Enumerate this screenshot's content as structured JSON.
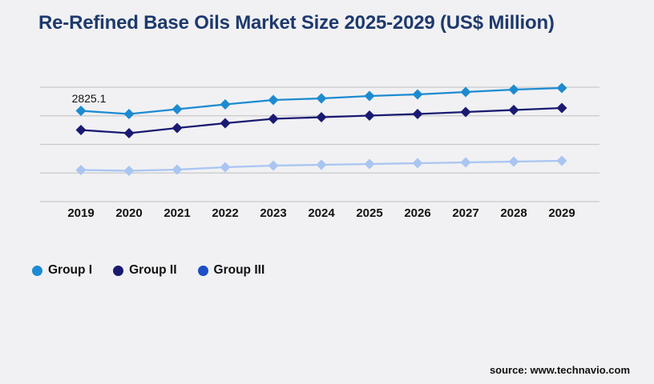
{
  "title": "Re-Refined Base Oils Market Size 2025-2029 (US$ Million)",
  "source": "source: www.technavio.com",
  "colors": {
    "background": "#f1f1f3",
    "title_text": "#1e3a6d",
    "gridline": "#c9c9cd",
    "axis_text": "#121212",
    "group1": "#1d8bd1",
    "group2": "#1a1a72",
    "group3_line": "#a9c5f2",
    "group3_legend": "#1d4ec5"
  },
  "chart_data": {
    "type": "line",
    "title": "Re-Refined Base Oils Market Size 2025-2029 (US$ Million)",
    "categories": [
      "2019",
      "2020",
      "2021",
      "2022",
      "2023",
      "2024",
      "2025",
      "2026",
      "2027",
      "2028",
      "2029"
    ],
    "series": [
      {
        "name": "Group I",
        "line_color": "#1d8bd1",
        "legend_color": "#1d8bd1",
        "marker": "diamond",
        "values": [
          2825.1,
          2725,
          2875,
          3024,
          3161,
          3211,
          3285,
          3335,
          3410,
          3485,
          3534
        ]
      },
      {
        "name": "Group II",
        "line_color": "#1a1a72",
        "legend_color": "#191970",
        "marker": "diamond",
        "values": [
          2228,
          2128,
          2290,
          2439,
          2576,
          2626,
          2676,
          2725,
          2788,
          2850,
          2912
        ]
      },
      {
        "name": "Group III",
        "line_color": "#a9c5f2",
        "legend_color": "#1d4ec5",
        "marker": "diamond",
        "values": [
          983,
          958,
          996,
          1070,
          1120,
          1145,
          1170,
          1195,
          1220,
          1245,
          1269
        ]
      }
    ],
    "data_labels": [
      {
        "series": "Group I",
        "category": "2019",
        "text": "2825.1"
      }
    ],
    "xlabel": "",
    "ylabel": "",
    "ylim": [
      0,
      3560
    ],
    "grid": "horizontal",
    "gridline_count": 5,
    "y_axis_tick_labels_visible": false,
    "legend_position": "bottom-left"
  }
}
